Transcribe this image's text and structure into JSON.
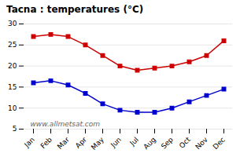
{
  "chart_data": {
    "type": "line",
    "title": "Tacna : temperatures (°C)",
    "categories": [
      "Jan",
      "Feb",
      "Mar",
      "Apr",
      "May",
      "Jun",
      "Jul",
      "Aug",
      "Sep",
      "Oct",
      "Nov",
      "Dec"
    ],
    "series": [
      {
        "color": "#cc0000",
        "values": [
          27.0,
          27.5,
          27.0,
          25.0,
          22.5,
          20.0,
          19.0,
          19.5,
          20.0,
          21.0,
          22.5,
          26.0
        ]
      },
      {
        "color": "#0000cc",
        "values": [
          16.0,
          16.5,
          15.5,
          13.5,
          11.0,
          9.5,
          9.0,
          9.0,
          10.0,
          11.5,
          13.0,
          14.5
        ]
      }
    ],
    "marker": "square",
    "ylim": [
      5,
      30
    ],
    "yticks": [
      5,
      10,
      15,
      20,
      25,
      30
    ],
    "grid": true,
    "annotations": [
      "www.allmetsat.com"
    ]
  }
}
